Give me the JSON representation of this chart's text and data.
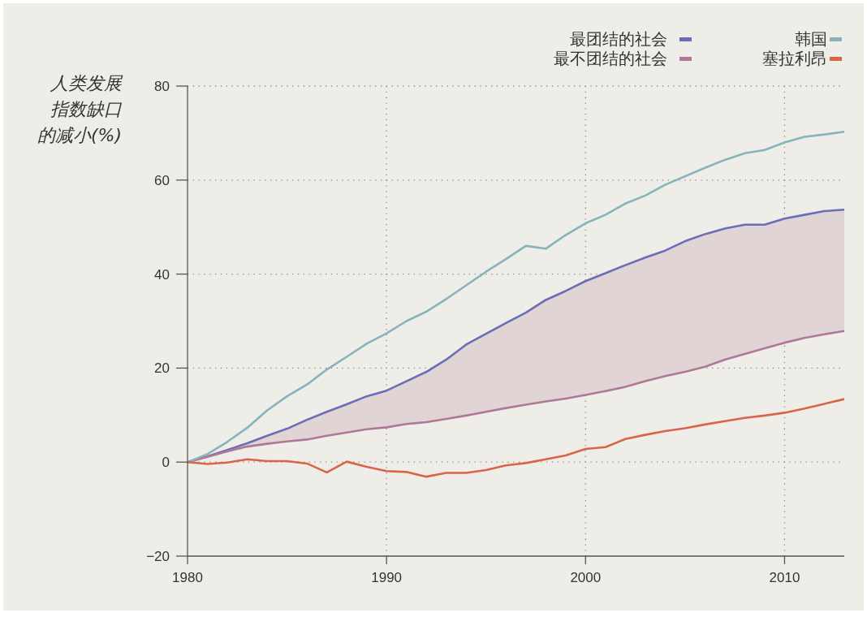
{
  "chart_data": {
    "type": "line",
    "ylabel": "人类发展指数缺口的减小(%)",
    "x": [
      1980,
      1981,
      1982,
      1983,
      1984,
      1985,
      1986,
      1987,
      1988,
      1989,
      1990,
      1991,
      1992,
      1993,
      1994,
      1995,
      1996,
      1997,
      1998,
      1999,
      2000,
      2001,
      2002,
      2003,
      2004,
      2005,
      2006,
      2007,
      2008,
      2009,
      2010,
      2011,
      2012,
      2013
    ],
    "series": [
      {
        "name": "最团结的社会",
        "color": "#6a6db8",
        "values": [
          0,
          1.2,
          2.6,
          4,
          5.6,
          7.1,
          9,
          10.7,
          12.3,
          14,
          15.2,
          17.2,
          19.2,
          21.8,
          25,
          27.3,
          29.6,
          31.8,
          34.5,
          36.4,
          38.5,
          40.2,
          41.9,
          43.5,
          45,
          47,
          48.5,
          49.7,
          50.5,
          50.5,
          51.8,
          52.6,
          53.4,
          53.7
        ],
        "lower": [
          0,
          1.1,
          2.3,
          3.3,
          3.9,
          4.4,
          4.8,
          5.6,
          6.3,
          7,
          7.4,
          8.1,
          8.5,
          9.2,
          9.9,
          10.7,
          11.5,
          12.2,
          12.9,
          13.5,
          14.3,
          15.1,
          16,
          17.2,
          18.3,
          19.2,
          20.3,
          21.8,
          23,
          24.2,
          25.4,
          26.4,
          27.2,
          27.9
        ],
        "upper": [
          0,
          1.2,
          2.6,
          4,
          5.6,
          7.1,
          9,
          10.7,
          12.3,
          14,
          15.2,
          17.2,
          19.2,
          21.8,
          25,
          27.3,
          29.6,
          31.8,
          34.5,
          36.4,
          38.5,
          40.2,
          41.9,
          43.5,
          45,
          47,
          48.5,
          49.7,
          50.5,
          50.5,
          51.8,
          52.6,
          53.4,
          53.7
        ]
      },
      {
        "name": "最不团结的社会",
        "color": "#b07897",
        "values": [
          0,
          1.1,
          2.3,
          3.3,
          3.9,
          4.4,
          4.8,
          5.6,
          6.3,
          7,
          7.4,
          8.1,
          8.5,
          9.2,
          9.9,
          10.7,
          11.5,
          12.2,
          12.9,
          13.5,
          14.3,
          15.1,
          16,
          17.2,
          18.3,
          19.2,
          20.3,
          21.8,
          23,
          24.2,
          25.4,
          26.4,
          27.2,
          27.9
        ]
      },
      {
        "name": "韩国",
        "color": "#85b5ba",
        "values": [
          0,
          1.7,
          4.3,
          7.3,
          11,
          14,
          16.5,
          19.7,
          22.4,
          25.2,
          27.4,
          30,
          32,
          34.7,
          37.6,
          40.5,
          43.2,
          46,
          45.4,
          48.3,
          50.8,
          52.6,
          55,
          56.7,
          59,
          60.8,
          62.6,
          64.3,
          65.7,
          66.4,
          68,
          69.2,
          69.7,
          70.3
        ]
      },
      {
        "name": "塞拉利昂",
        "color": "#d8654a",
        "values": [
          0,
          -0.4,
          -0.1,
          0.6,
          0.2,
          0.2,
          -0.3,
          -2.2,
          0.1,
          -1,
          -1.9,
          -2.1,
          -3.1,
          -2.3,
          -2.3,
          -1.7,
          -0.7,
          -0.2,
          0.6,
          1.4,
          2.8,
          3.2,
          4.9,
          5.8,
          6.6,
          7.2,
          8,
          8.7,
          9.4,
          9.9,
          10.5,
          11.4,
          12.4,
          13.4
        ]
      }
    ],
    "xlim": [
      1980,
      2013
    ],
    "xticks": [
      1980,
      1990,
      2000,
      2010
    ],
    "ylim": [
      -20,
      80
    ],
    "yticks": [
      {
        "value": -20,
        "label": "−20"
      },
      0,
      20,
      40,
      60,
      80
    ],
    "grid": true,
    "legend": "top right",
    "marker": "none",
    "line_style": "solid"
  }
}
